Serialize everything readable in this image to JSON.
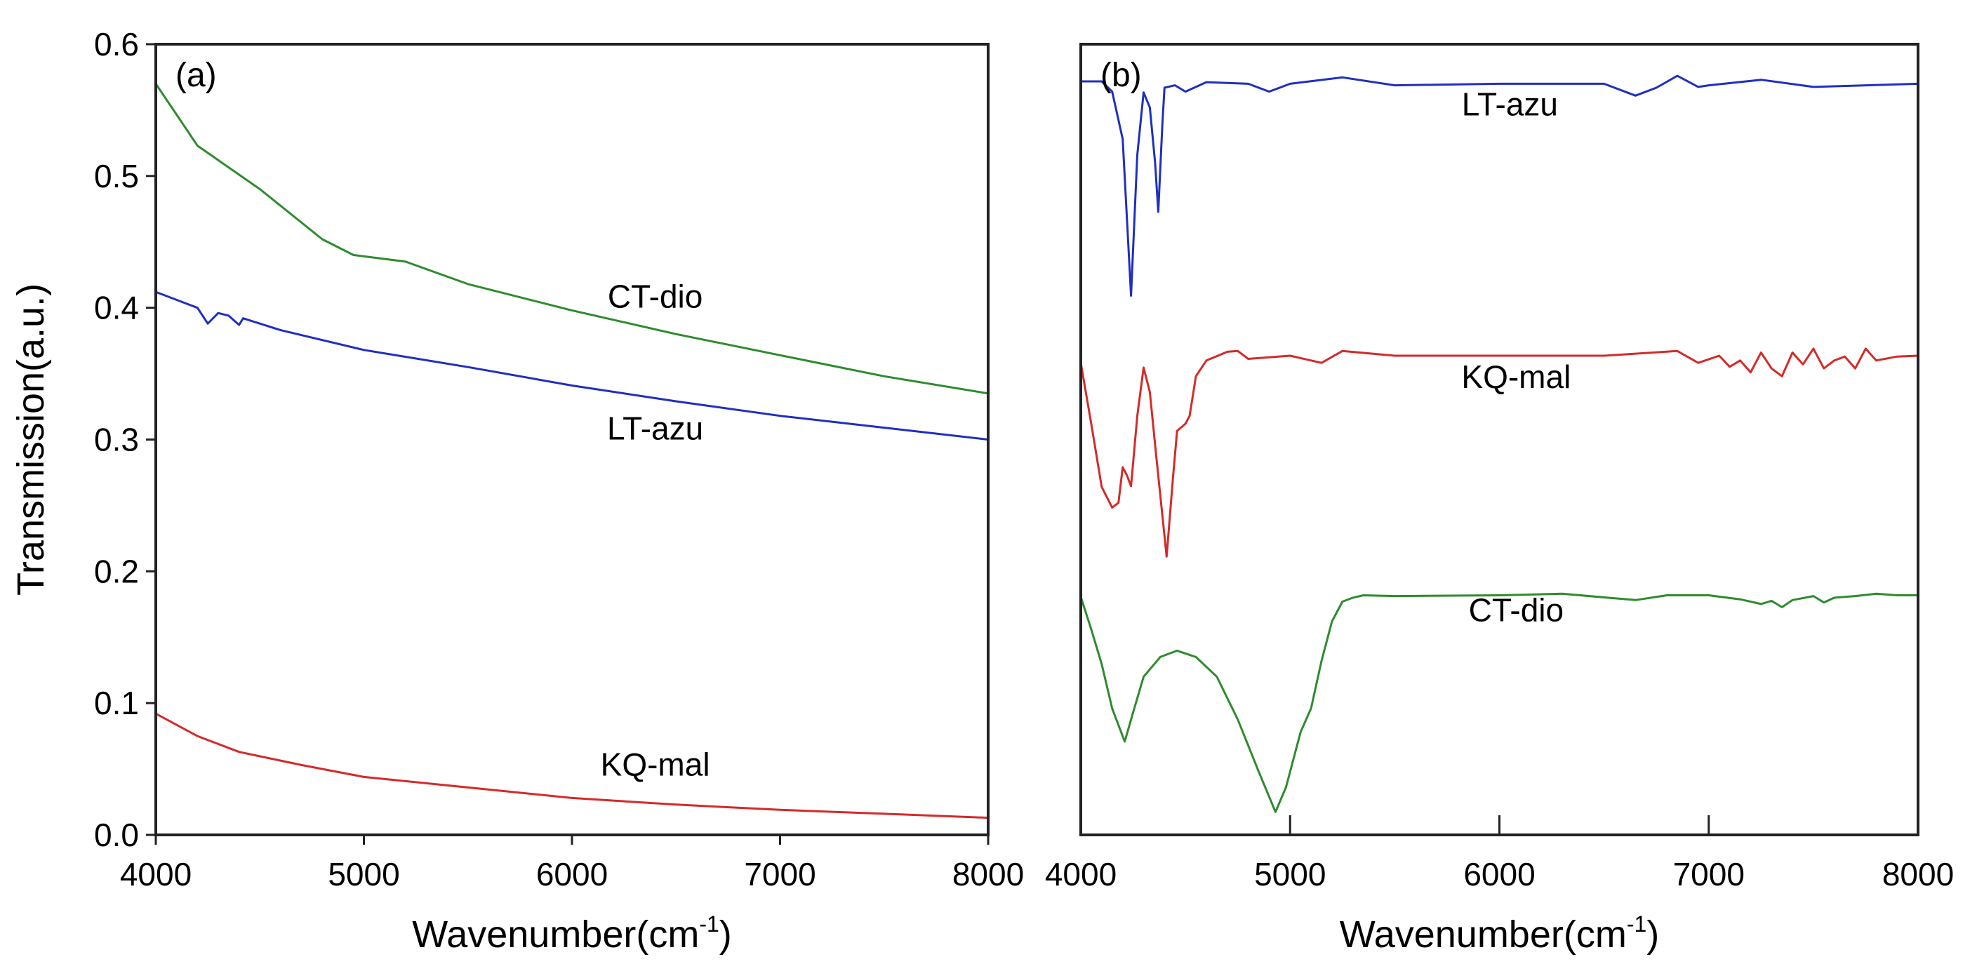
{
  "chart_data": [
    {
      "type": "line",
      "panel_label": "(a)",
      "xlabel": "Wavenumber(cm",
      "xlabel_superscript": "-1",
      "xlabel_close": ")",
      "ylabel": "Transmission(a.u.)",
      "xlim": [
        4000,
        8000
      ],
      "ylim": [
        0.0,
        0.6
      ],
      "xticks": [
        "4000",
        "5000",
        "6000",
        "7000",
        "8000"
      ],
      "yticks": [
        "0.0",
        "0.1",
        "0.2",
        "0.3",
        "0.4",
        "0.5",
        "0.6"
      ],
      "grid": false,
      "series": [
        {
          "name": "CT-dio",
          "color": "#2e8b2e",
          "x": [
            4000,
            4200,
            4500,
            4800,
            4950,
            5200,
            5500,
            6000,
            6500,
            7000,
            7500,
            8000
          ],
          "y": [
            0.57,
            0.523,
            0.49,
            0.452,
            0.44,
            0.435,
            0.418,
            0.398,
            0.38,
            0.364,
            0.348,
            0.335
          ]
        },
        {
          "name": "LT-azu",
          "color": "#1f2fbf",
          "x": [
            4000,
            4200,
            4250,
            4300,
            4350,
            4400,
            4420,
            4600,
            5000,
            5500,
            6000,
            6500,
            7000,
            7500,
            8000
          ],
          "y": [
            0.412,
            0.4,
            0.388,
            0.396,
            0.394,
            0.387,
            0.392,
            0.383,
            0.368,
            0.355,
            0.341,
            0.329,
            0.318,
            0.309,
            0.3
          ]
        },
        {
          "name": "KQ-mal",
          "color": "#d42a2a",
          "x": [
            4000,
            4200,
            4400,
            4700,
            5000,
            5500,
            6000,
            6500,
            7000,
            7500,
            8000
          ],
          "y": [
            0.092,
            0.075,
            0.063,
            0.053,
            0.044,
            0.036,
            0.028,
            0.023,
            0.019,
            0.016,
            0.013
          ]
        }
      ],
      "annotations": [
        {
          "text": "CT-dio",
          "x": 6400,
          "y": 0.4
        },
        {
          "text": "LT-azu",
          "x": 6400,
          "y": 0.3
        },
        {
          "text": "KQ-mal",
          "x": 6400,
          "y": 0.045
        }
      ]
    },
    {
      "type": "line",
      "panel_label": "(b)",
      "xlabel": "Wavenumber(cm",
      "xlabel_superscript": "-1",
      "xlabel_close": ")",
      "ylabel": "",
      "xlim": [
        4000,
        8000
      ],
      "ylim": [
        0,
        1
      ],
      "xticks": [
        "4000",
        "5000",
        "6000",
        "7000",
        "8000"
      ],
      "grid": false,
      "series": [
        {
          "name": "LT-azu",
          "color": "#1f2fbf",
          "x": [
            4000,
            4100,
            4150,
            4200,
            4240,
            4270,
            4300,
            4330,
            4355,
            4370,
            4390,
            4400,
            4450,
            4500,
            4600,
            4800,
            4900,
            5000,
            5250,
            5500,
            6000,
            6500,
            6650,
            6750,
            6850,
            6950,
            7000,
            7250,
            7500,
            8000
          ],
          "y": [
            0.953,
            0.953,
            0.94,
            0.88,
            0.682,
            0.86,
            0.939,
            0.92,
            0.85,
            0.788,
            0.9,
            0.945,
            0.948,
            0.94,
            0.952,
            0.95,
            0.94,
            0.95,
            0.958,
            0.948,
            0.95,
            0.95,
            0.935,
            0.945,
            0.96,
            0.946,
            0.948,
            0.955,
            0.946,
            0.95
          ]
        },
        {
          "name": "KQ-mal",
          "color": "#d42a2a",
          "x": [
            4000,
            4050,
            4100,
            4150,
            4180,
            4200,
            4220,
            4240,
            4270,
            4300,
            4330,
            4360,
            4410,
            4440,
            4460,
            4500,
            4520,
            4550,
            4600,
            4700,
            4750,
            4800,
            5000,
            5150,
            5250,
            5500,
            6000,
            6500,
            6850,
            6950,
            7050,
            7100,
            7150,
            7200,
            7250,
            7300,
            7350,
            7400,
            7450,
            7500,
            7550,
            7600,
            7650,
            7700,
            7750,
            7800,
            7900,
            8000
          ],
          "y": [
            0.597,
            0.52,
            0.44,
            0.414,
            0.42,
            0.465,
            0.455,
            0.441,
            0.53,
            0.591,
            0.56,
            0.48,
            0.352,
            0.45,
            0.511,
            0.52,
            0.53,
            0.58,
            0.6,
            0.611,
            0.612,
            0.602,
            0.606,
            0.597,
            0.612,
            0.606,
            0.606,
            0.606,
            0.612,
            0.597,
            0.606,
            0.592,
            0.6,
            0.585,
            0.61,
            0.59,
            0.58,
            0.61,
            0.595,
            0.615,
            0.59,
            0.6,
            0.605,
            0.59,
            0.615,
            0.6,
            0.605,
            0.606
          ]
        },
        {
          "name": "CT-dio",
          "color": "#2e8b2e",
          "x": [
            4000,
            4050,
            4100,
            4150,
            4210,
            4250,
            4300,
            4380,
            4460,
            4550,
            4650,
            4750,
            4850,
            4930,
            4980,
            5050,
            5100,
            5150,
            5200,
            5250,
            5300,
            5350,
            5500,
            6000,
            6300,
            6650,
            6800,
            7000,
            7150,
            7250,
            7300,
            7350,
            7400,
            7500,
            7550,
            7600,
            7700,
            7800,
            7900,
            8000
          ],
          "y": [
            0.301,
            0.26,
            0.216,
            0.16,
            0.118,
            0.155,
            0.2,
            0.225,
            0.233,
            0.225,
            0.2,
            0.146,
            0.08,
            0.029,
            0.06,
            0.13,
            0.16,
            0.22,
            0.27,
            0.295,
            0.3,
            0.303,
            0.302,
            0.303,
            0.305,
            0.297,
            0.303,
            0.303,
            0.298,
            0.292,
            0.296,
            0.288,
            0.297,
            0.302,
            0.294,
            0.3,
            0.302,
            0.305,
            0.303,
            0.303
          ]
        }
      ],
      "annotations": [
        {
          "text": "LT-azu",
          "x": 6050,
          "y": 0.91
        },
        {
          "text": "KQ-mal",
          "x": 6080,
          "y": 0.565
        },
        {
          "text": "CT-dio",
          "x": 6080,
          "y": 0.27
        }
      ]
    }
  ]
}
